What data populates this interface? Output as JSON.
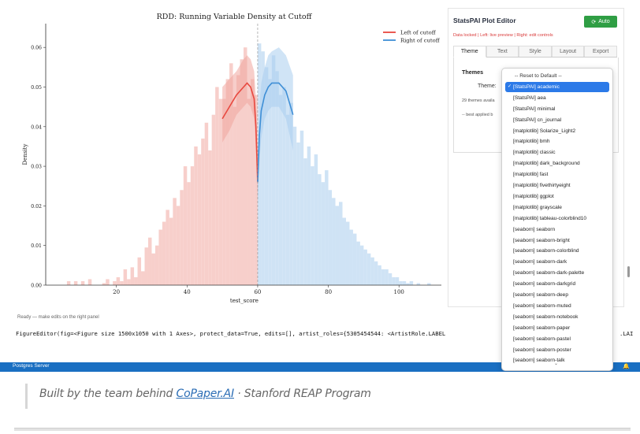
{
  "notebook": {
    "status_line": "Ready — make edits on the right panel",
    "repr": "FigureEditor(fig=<Figure size 1500x1050 with 1 Axes>, protect_data=True, edits=[], artist_roles={5305454544: <ArtistRole.LABEL",
    "repr_tail": ".LAI"
  },
  "chart_data": {
    "type": "bar",
    "title": "RDD: Running Variable Density at Cutoff",
    "xlabel": "test_score",
    "ylabel": "Density",
    "xlim": [
      0,
      112
    ],
    "ylim": [
      0,
      0.066
    ],
    "xticks": [
      20,
      40,
      60,
      80,
      100
    ],
    "yticks": [
      0.0,
      0.01,
      0.02,
      0.03,
      0.04,
      0.05,
      0.06
    ],
    "ytick_labels": [
      "0.00",
      "0.01",
      "0.02",
      "0.03",
      "0.04",
      "0.05",
      "0.06"
    ],
    "cutoff": 60,
    "legend_position": "top-right",
    "series": [
      {
        "name": "Left of cutoff",
        "color": "#e8483f",
        "hist_color": "#f7cfcb",
        "bin_width": 1,
        "bin_left": [
          6,
          7,
          8,
          9,
          10,
          11,
          12,
          13,
          14,
          15,
          16,
          17,
          18,
          19,
          20,
          21,
          22,
          23,
          24,
          25,
          26,
          27,
          28,
          29,
          30,
          31,
          32,
          33,
          34,
          35,
          36,
          37,
          38,
          39,
          40,
          41,
          42,
          43,
          44,
          45,
          46,
          47,
          48,
          49,
          50,
          51,
          52,
          53,
          54,
          55,
          56,
          57,
          58,
          59
        ],
        "density": [
          0.001,
          0,
          0.001,
          0,
          0.001,
          0,
          0.0015,
          0,
          0,
          0,
          0.0005,
          0.0015,
          0,
          0.001,
          0.002,
          0.001,
          0.004,
          0.0015,
          0.0045,
          0.002,
          0.007,
          0.0035,
          0.0095,
          0.012,
          0.008,
          0.01,
          0.014,
          0.016,
          0.019,
          0.017,
          0.022,
          0.02,
          0.024,
          0.03,
          0.026,
          0.03,
          0.035,
          0.033,
          0.037,
          0.041,
          0.034,
          0.043,
          0.05,
          0.047,
          0.047,
          0.052,
          0.056,
          0.045,
          0.053,
          0.057,
          0.06,
          0.047,
          0.052,
          0.048
        ]
      },
      {
        "name": "Right of cutoff",
        "color": "#3f8fd6",
        "hist_color": "#cfe3f5",
        "bin_width": 1,
        "bin_left": [
          60,
          61,
          62,
          63,
          64,
          65,
          66,
          67,
          68,
          69,
          70,
          71,
          72,
          73,
          74,
          75,
          76,
          77,
          78,
          79,
          80,
          81,
          82,
          83,
          84,
          85,
          86,
          87,
          88,
          89,
          90,
          91,
          92,
          93,
          94,
          95,
          96,
          97,
          98,
          99,
          100,
          101,
          102,
          103,
          104,
          105,
          106,
          107,
          108,
          109,
          110
        ],
        "density": [
          0.061,
          0.059,
          0.055,
          0.052,
          0.058,
          0.054,
          0.048,
          0.05,
          0.043,
          0.046,
          0.04,
          0.036,
          0.039,
          0.032,
          0.035,
          0.03,
          0.033,
          0.028,
          0.026,
          0.029,
          0.024,
          0.022,
          0.02,
          0.021,
          0.017,
          0.016,
          0.014,
          0.013,
          0.011,
          0.01,
          0.009,
          0.008,
          0.007,
          0.006,
          0.005,
          0.004,
          0.004,
          0.003,
          0.002,
          0.002,
          0.001,
          0.001,
          0.0005,
          0.001,
          0,
          0.0005,
          0,
          0,
          0.0005,
          0,
          0
        ]
      }
    ],
    "fits": [
      {
        "name": "Left of cutoff",
        "x": [
          50,
          52,
          54,
          56,
          57,
          58,
          59,
          59.5,
          60
        ],
        "y": [
          0.042,
          0.045,
          0.048,
          0.05,
          0.051,
          0.05,
          0.047,
          0.04,
          0.026
        ],
        "ci_low": [
          0.036,
          0.039,
          0.043,
          0.045,
          0.046,
          0.045,
          0.042,
          0.034,
          0.02
        ],
        "ci_high": [
          0.05,
          0.052,
          0.054,
          0.057,
          0.058,
          0.057,
          0.054,
          0.047,
          0.032
        ]
      },
      {
        "name": "Right of cutoff",
        "x": [
          60,
          60.5,
          61,
          62,
          63,
          64,
          66,
          68,
          70
        ],
        "y": [
          0.026,
          0.038,
          0.044,
          0.048,
          0.05,
          0.051,
          0.051,
          0.049,
          0.043
        ],
        "ci_low": [
          0.02,
          0.031,
          0.037,
          0.042,
          0.044,
          0.045,
          0.045,
          0.042,
          0.034
        ],
        "ci_high": [
          0.032,
          0.045,
          0.051,
          0.055,
          0.058,
          0.059,
          0.06,
          0.058,
          0.053
        ]
      }
    ]
  },
  "editor": {
    "title": "StatsPAI Plot Editor",
    "auto_label": "Auto",
    "locked_line": "Data locked  |  Left: live preview  |  Right: edit controls",
    "tabs": [
      "Theme",
      "Text",
      "Style",
      "Layout",
      "Export"
    ],
    "themes_heading": "Themes",
    "theme_label": "Theme:",
    "themes_count": "29 themes availa",
    "best_applied": "-- best applied b"
  },
  "theme_dropdown": {
    "options": [
      "-- Reset to Default --",
      "[StatsPAI]  academic",
      "[StatsPAI]  aea",
      "[StatsPAI]  minimal",
      "[StatsPAI]  cn_journal",
      "[matplotlib]  Solarize_Light2",
      "[matplotlib]  bmh",
      "[matplotlib]  classic",
      "[matplotlib]  dark_background",
      "[matplotlib]  fast",
      "[matplotlib]  fivethirtyeight",
      "[matplotlib]  ggplot",
      "[matplotlib]  grayscale",
      "[matplotlib]  tableau-colorblind10",
      "[seaborn]  seaborn",
      "[seaborn]  seaborn-bright",
      "[seaborn]  seaborn-colorblind",
      "[seaborn]  seaborn-dark",
      "[seaborn]  seaborn-dark-palette",
      "[seaborn]  seaborn-darkgrid",
      "[seaborn]  seaborn-deep",
      "[seaborn]  seaborn-muted",
      "[seaborn]  seaborn-notebook",
      "[seaborn]  seaborn-paper",
      "[seaborn]  seaborn-pastel",
      "[seaborn]  seaborn-poster",
      "[seaborn]  seaborn-talk"
    ],
    "selected_index": 1
  },
  "statusbar": {
    "text": "Postgres Server"
  },
  "footer": {
    "prefix": "Built by the team behind ",
    "link": "CoPaper.AI",
    "suffix": " · Stanford REAP Program"
  },
  "colors": {
    "accent_blue": "#2c7ae8",
    "auto_green": "#2f9e44",
    "locked_red": "#d93a3a",
    "statusbar": "#1a6fc2"
  },
  "icons": {
    "auto": "refresh-icon",
    "selected": "check-icon",
    "more": "chevron-down-icon",
    "bell": "bell-icon"
  }
}
